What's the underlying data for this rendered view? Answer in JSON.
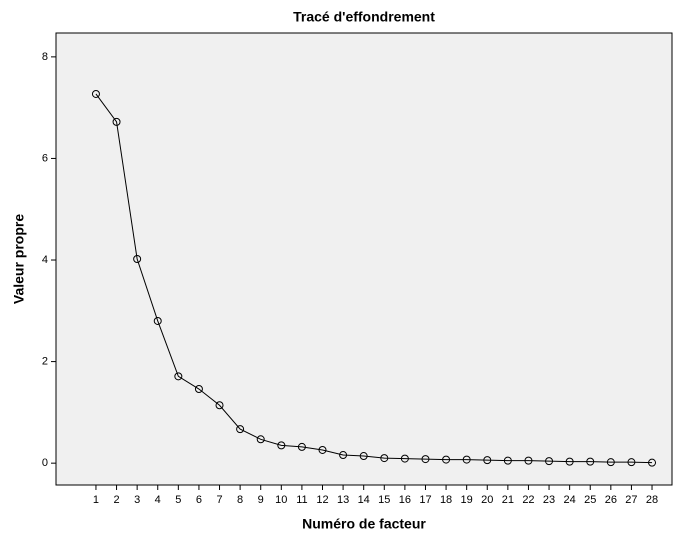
{
  "chart_data": {
    "type": "line",
    "title": "Tracé d'effondrement",
    "xlabel": "Numéro de facteur",
    "ylabel": "Valeur propre",
    "x": [
      1,
      2,
      3,
      4,
      5,
      6,
      7,
      8,
      9,
      10,
      11,
      12,
      13,
      14,
      15,
      16,
      17,
      18,
      19,
      20,
      21,
      22,
      23,
      24,
      25,
      26,
      27,
      28
    ],
    "series": [
      {
        "name": "Valeur propre",
        "color": "#000000",
        "values": [
          7.27,
          6.72,
          4.02,
          2.8,
          1.71,
          1.46,
          1.14,
          0.67,
          0.47,
          0.35,
          0.32,
          0.26,
          0.16,
          0.14,
          0.1,
          0.09,
          0.08,
          0.07,
          0.07,
          0.06,
          0.05,
          0.05,
          0.04,
          0.03,
          0.03,
          0.02,
          0.02,
          0.01
        ]
      }
    ],
    "xlim": [
      -0.94,
      28.97
    ],
    "xticks": [
      1,
      2,
      3,
      4,
      5,
      6,
      7,
      8,
      9,
      10,
      11,
      12,
      13,
      14,
      15,
      16,
      17,
      18,
      19,
      20,
      21,
      22,
      23,
      24,
      25,
      26,
      27,
      28
    ],
    "ylim": [
      -0.43,
      8.47
    ],
    "yticks": [
      0,
      2,
      4,
      6,
      8
    ],
    "background": "#f0f0f0"
  }
}
